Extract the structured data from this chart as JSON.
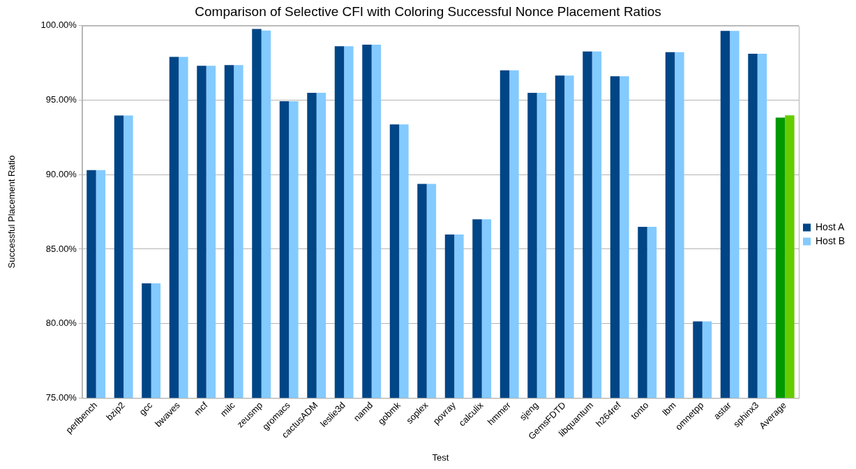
{
  "chart_data": {
    "type": "bar",
    "title": "Comparison of Selective CFI with Coloring Successful Nonce Placement Ratios",
    "xlabel": "Test",
    "ylabel": "Successful Placement Ratio",
    "categories": [
      "perlbench",
      "bzip2",
      "gcc",
      "bwaves",
      "mcf",
      "milc",
      "zeusmp",
      "gromacs",
      "cactusADM",
      "leslie3d",
      "namd",
      "gobmk",
      "soplex",
      "povray",
      "calculix",
      "hmmer",
      "sjeng",
      "GemsFDTD",
      "libquantum",
      "h264ref",
      "tonto",
      "lbm",
      "omnetpp",
      "astar",
      "sphinx3",
      "Average"
    ],
    "series": [
      {
        "name": "Host A",
        "color": "#004586",
        "colors": [
          "#004586",
          "#004586",
          "#004586",
          "#004586",
          "#004586",
          "#004586",
          "#004586",
          "#004586",
          "#004586",
          "#004586",
          "#004586",
          "#004586",
          "#004586",
          "#004586",
          "#004586",
          "#004586",
          "#004586",
          "#004586",
          "#004586",
          "#004586",
          "#004586",
          "#004586",
          "#004586",
          "#004586",
          "#004586",
          "#009900"
        ],
        "values": [
          90.3,
          93.97,
          82.7,
          97.91,
          97.31,
          97.36,
          99.78,
          94.93,
          95.49,
          98.62,
          98.72,
          93.37,
          89.38,
          85.98,
          87.0,
          97.0,
          95.49,
          96.65,
          98.27,
          96.6,
          86.5,
          98.22,
          80.15,
          99.65,
          98.12,
          93.83
        ]
      },
      {
        "name": "Host B",
        "color": "#83caff",
        "colors": [
          "#83caff",
          "#83caff",
          "#83caff",
          "#83caff",
          "#83caff",
          "#83caff",
          "#83caff",
          "#83caff",
          "#83caff",
          "#83caff",
          "#83caff",
          "#83caff",
          "#83caff",
          "#83caff",
          "#83caff",
          "#83caff",
          "#83caff",
          "#83caff",
          "#83caff",
          "#83caff",
          "#83caff",
          "#83caff",
          "#83caff",
          "#83caff",
          "#83caff",
          "#66cc00"
        ],
        "values": [
          90.3,
          93.97,
          82.7,
          97.91,
          97.31,
          97.36,
          99.68,
          94.93,
          95.49,
          98.62,
          98.72,
          93.37,
          89.38,
          85.98,
          87.0,
          97.0,
          95.49,
          96.65,
          98.27,
          96.6,
          86.5,
          98.22,
          80.15,
          99.65,
          98.12,
          93.98
        ]
      }
    ],
    "ylim": [
      75,
      100
    ],
    "yticks": [
      {
        "value": 75,
        "label": "75.00%"
      },
      {
        "value": 80,
        "label": "80.00%"
      },
      {
        "value": 85,
        "label": "85.00%"
      },
      {
        "value": 90,
        "label": "90.00%"
      },
      {
        "value": 95,
        "label": "95.00%"
      },
      {
        "value": 100,
        "label": "100.00%"
      }
    ],
    "grid": "y",
    "legend": "right"
  }
}
